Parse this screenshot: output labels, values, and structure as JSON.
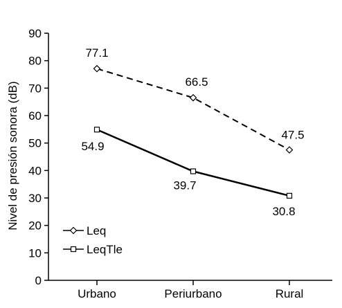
{
  "chart_data": {
    "type": "line",
    "title": "",
    "xlabel": "",
    "ylabel": "Nivel de presión sonora (dB)",
    "ylim": [
      0,
      90
    ],
    "yticks": [
      0,
      10,
      20,
      30,
      40,
      50,
      60,
      70,
      80,
      90
    ],
    "grid": false,
    "legend_position": "bottom-left",
    "categories": [
      "Urbano",
      "Periurbano",
      "Rural"
    ],
    "series": [
      {
        "name": "Leq",
        "values": [
          77.1,
          66.5,
          47.5
        ],
        "labels": [
          "77.1",
          "66.5",
          "47.5"
        ],
        "marker": "diamond",
        "line_style": "dashed",
        "color": "#000000"
      },
      {
        "name": "LeqTle",
        "values": [
          54.9,
          39.7,
          30.8
        ],
        "labels": [
          "54.9",
          "39.7",
          "30.8"
        ],
        "marker": "square",
        "line_style": "solid",
        "color": "#000000"
      }
    ]
  }
}
